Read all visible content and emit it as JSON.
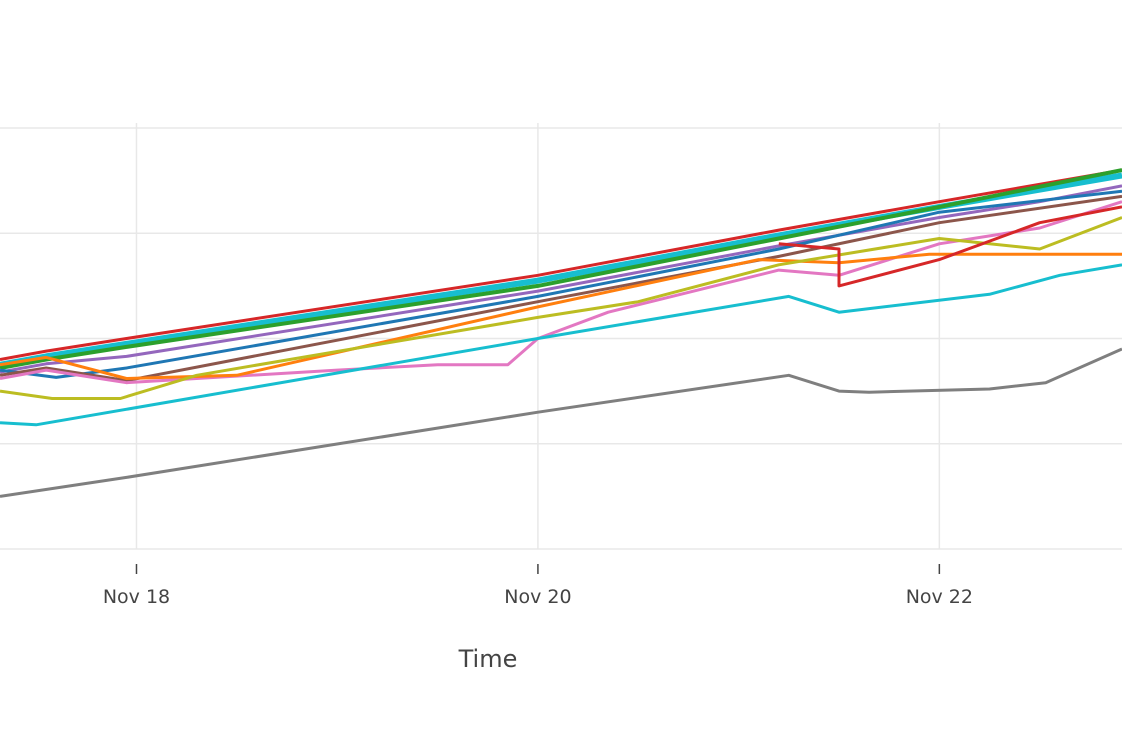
{
  "chart_data": {
    "type": "line",
    "title": "",
    "xlabel": "Time",
    "ylabel": "",
    "x_tick_labels": [
      "Nov 18",
      "Nov 20",
      "Nov 22"
    ],
    "x_ticks": [
      "2023-11-18",
      "2023-11-20",
      "2023-11-22"
    ],
    "xlim": [
      "2023-11-17.32",
      "2023-11-22.91"
    ],
    "ylim": [
      0,
      4
    ],
    "grid": true,
    "legend": "none",
    "series": [
      {
        "color": "#d62728",
        "width": 3,
        "points": [
          [
            "2023-11-17.32",
            1.8
          ],
          [
            "2023-11-17.55",
            1.88
          ],
          [
            "2023-11-17.95",
            2.0
          ],
          [
            "2023-11-20.0",
            2.6
          ],
          [
            "2023-11-21.2",
            3.03
          ],
          [
            "2023-11-22.0",
            3.3
          ],
          [
            "2023-11-22.91",
            3.6
          ]
        ]
      },
      {
        "color": "#17becf",
        "width": 6,
        "points": [
          [
            "2023-11-17.32",
            1.75
          ],
          [
            "2023-11-17.55",
            1.83
          ],
          [
            "2023-11-17.95",
            1.95
          ],
          [
            "2023-11-20.0",
            2.55
          ],
          [
            "2023-11-21.2",
            2.98
          ],
          [
            "2023-11-22.0",
            3.25
          ],
          [
            "2023-11-22.91",
            3.55
          ]
        ]
      },
      {
        "color": "#2ca02c",
        "width": 4,
        "points": [
          [
            "2023-11-17.32",
            1.72
          ],
          [
            "2023-11-17.55",
            1.8
          ],
          [
            "2023-11-17.95",
            1.92
          ],
          [
            "2023-11-20.0",
            2.5
          ],
          [
            "2023-11-21.2",
            2.95
          ],
          [
            "2023-11-22.0",
            3.25
          ],
          [
            "2023-11-22.91",
            3.6
          ]
        ]
      },
      {
        "color": "#9467bd",
        "width": 3,
        "points": [
          [
            "2023-11-17.32",
            1.68
          ],
          [
            "2023-11-17.55",
            1.76
          ],
          [
            "2023-11-17.95",
            1.83
          ],
          [
            "2023-11-20.0",
            2.45
          ],
          [
            "2023-11-21.2",
            2.88
          ],
          [
            "2023-11-22.0",
            3.15
          ],
          [
            "2023-11-22.5",
            3.3
          ],
          [
            "2023-11-22.91",
            3.45
          ]
        ]
      },
      {
        "color": "#1f77b4",
        "width": 3,
        "points": [
          [
            "2023-11-17.32",
            1.7
          ],
          [
            "2023-11-17.6",
            1.63
          ],
          [
            "2023-11-17.95",
            1.72
          ],
          [
            "2023-11-20.0",
            2.4
          ],
          [
            "2023-11-21.2",
            2.85
          ],
          [
            "2023-11-22.0",
            3.2
          ],
          [
            "2023-11-22.91",
            3.4
          ]
        ]
      },
      {
        "color": "#8c564b",
        "width": 3,
        "points": [
          [
            "2023-11-17.32",
            1.65
          ],
          [
            "2023-11-17.55",
            1.72
          ],
          [
            "2023-11-17.95",
            1.6
          ],
          [
            "2023-11-20.0",
            2.35
          ],
          [
            "2023-11-21.2",
            2.78
          ],
          [
            "2023-11-22.0",
            3.1
          ],
          [
            "2023-11-22.91",
            3.35
          ]
        ]
      },
      {
        "color": "#e377c2",
        "width": 3,
        "points": [
          [
            "2023-11-17.32",
            1.62
          ],
          [
            "2023-11-17.55",
            1.7
          ],
          [
            "2023-11-17.95",
            1.58
          ],
          [
            "2023-11-19.0",
            1.7
          ],
          [
            "2023-11-19.5",
            1.75
          ],
          [
            "2023-11-19.85",
            1.75
          ],
          [
            "2023-11-20.0",
            2.0
          ],
          [
            "2023-11-20.35",
            2.25
          ],
          [
            "2023-11-21.2",
            2.65
          ],
          [
            "2023-11-21.5",
            2.6
          ],
          [
            "2023-11-22.0",
            2.9
          ],
          [
            "2023-11-22.5",
            3.05
          ],
          [
            "2023-11-22.91",
            3.3
          ]
        ]
      },
      {
        "color": "#ff7f0e",
        "width": 3,
        "points": [
          [
            "2023-11-17.32",
            1.75
          ],
          [
            "2023-11-17.55",
            1.82
          ],
          [
            "2023-11-17.95",
            1.62
          ],
          [
            "2023-11-18.5",
            1.65
          ],
          [
            "2023-11-20.0",
            2.3
          ],
          [
            "2023-11-21.1",
            2.75
          ],
          [
            "2023-11-21.5",
            2.72
          ],
          [
            "2023-11-21.95",
            2.8
          ],
          [
            "2023-11-22.91",
            2.8
          ]
        ]
      },
      {
        "color": "#bcbd22",
        "width": 3,
        "points": [
          [
            "2023-11-17.32",
            1.5
          ],
          [
            "2023-11-17.58",
            1.43
          ],
          [
            "2023-11-17.92",
            1.43
          ],
          [
            "2023-11-18.3",
            1.65
          ],
          [
            "2023-11-20.0",
            2.2
          ],
          [
            "2023-11-20.5",
            2.35
          ],
          [
            "2023-11-21.2",
            2.7
          ],
          [
            "2023-11-22.0",
            2.95
          ],
          [
            "2023-11-22.5",
            2.85
          ],
          [
            "2023-11-22.91",
            3.15
          ]
        ]
      },
      {
        "color": "#17becf",
        "width": 3,
        "points": [
          [
            "2023-11-17.32",
            1.2
          ],
          [
            "2023-11-17.5",
            1.18
          ],
          [
            "2023-11-20.0",
            2.0
          ],
          [
            "2023-11-21.25",
            2.4
          ],
          [
            "2023-11-21.5",
            2.25
          ],
          [
            "2023-11-22.25",
            2.42
          ],
          [
            "2023-11-22.6",
            2.6
          ],
          [
            "2023-11-22.91",
            2.7
          ]
        ]
      },
      {
        "color": "#d62728",
        "width": 3,
        "points": [
          [
            "2023-11-21.2",
            2.9
          ],
          [
            "2023-11-21.5",
            2.85
          ],
          [
            "2023-11-21.5",
            2.5
          ],
          [
            "2023-11-22.0",
            2.75
          ],
          [
            "2023-11-22.5",
            3.1
          ],
          [
            "2023-11-22.91",
            3.25
          ]
        ]
      },
      {
        "color": "#7f7f7f",
        "width": 3,
        "points": [
          [
            "2023-11-17.32",
            0.5
          ],
          [
            "2023-11-17.95",
            0.68
          ],
          [
            "2023-11-20.0",
            1.3
          ],
          [
            "2023-11-21.25",
            1.65
          ],
          [
            "2023-11-21.5",
            1.5
          ],
          [
            "2023-11-21.65",
            1.49
          ],
          [
            "2023-11-22.25",
            1.52
          ],
          [
            "2023-11-22.53",
            1.58
          ],
          [
            "2023-11-22.91",
            1.9
          ]
        ]
      }
    ]
  }
}
